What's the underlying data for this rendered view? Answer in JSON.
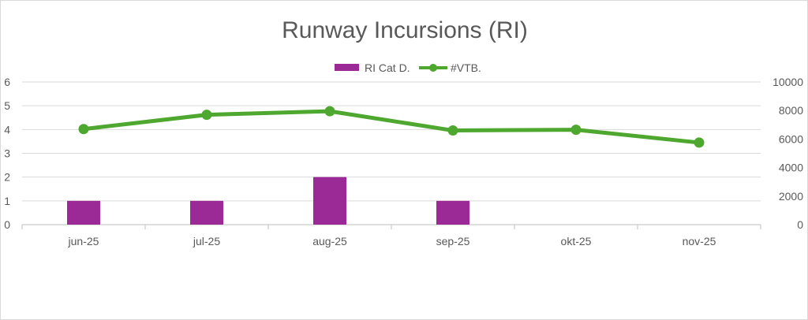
{
  "chart_data": {
    "type": "bar+line",
    "title": "Runway Incursions (RI)",
    "categories": [
      "jun-25",
      "jul-25",
      "aug-25",
      "sep-25",
      "okt-25",
      "nov-25"
    ],
    "series": [
      {
        "name": "RI Cat D.",
        "type": "bar",
        "axis": "left",
        "color": "#9B2A96",
        "values": [
          1,
          1,
          2,
          1,
          0,
          0
        ]
      },
      {
        "name": "#VTB.",
        "type": "line",
        "axis": "right",
        "color": "#4EA72E",
        "values": [
          6700,
          7700,
          7950,
          6600,
          6650,
          5750
        ]
      }
    ],
    "y_left": {
      "min": 0,
      "max": 6,
      "ticks": [
        "0",
        "1",
        "2",
        "3",
        "4",
        "5",
        "6"
      ]
    },
    "y_right": {
      "min": 0,
      "max": 10000,
      "ticks": [
        "0",
        "2000",
        "4000",
        "6000",
        "8000",
        "10000"
      ]
    },
    "grid": true,
    "legend_position": "top-center"
  }
}
